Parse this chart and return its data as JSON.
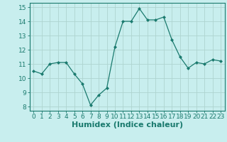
{
  "x": [
    0,
    1,
    2,
    3,
    4,
    5,
    6,
    7,
    8,
    9,
    10,
    11,
    12,
    13,
    14,
    15,
    16,
    17,
    18,
    19,
    20,
    21,
    22,
    23
  ],
  "y": [
    10.5,
    10.3,
    11.0,
    11.1,
    11.1,
    10.3,
    9.6,
    8.1,
    8.8,
    9.3,
    12.2,
    14.0,
    14.0,
    14.9,
    14.1,
    14.1,
    14.3,
    12.7,
    11.5,
    10.7,
    11.1,
    11.0,
    11.3,
    11.2
  ],
  "xlabel": "Humidex (Indice chaleur)",
  "xlim": [
    -0.5,
    23.5
  ],
  "ylim": [
    7.7,
    15.3
  ],
  "yticks": [
    8,
    9,
    10,
    11,
    12,
    13,
    14,
    15
  ],
  "xticks": [
    0,
    1,
    2,
    3,
    4,
    5,
    6,
    7,
    8,
    9,
    10,
    11,
    12,
    13,
    14,
    15,
    16,
    17,
    18,
    19,
    20,
    21,
    22,
    23
  ],
  "line_color": "#1a7a6e",
  "marker": "D",
  "marker_size": 2.0,
  "bg_color": "#c8eeee",
  "grid_color": "#aed4d0",
  "xlabel_fontsize": 8,
  "tick_fontsize": 6.5
}
